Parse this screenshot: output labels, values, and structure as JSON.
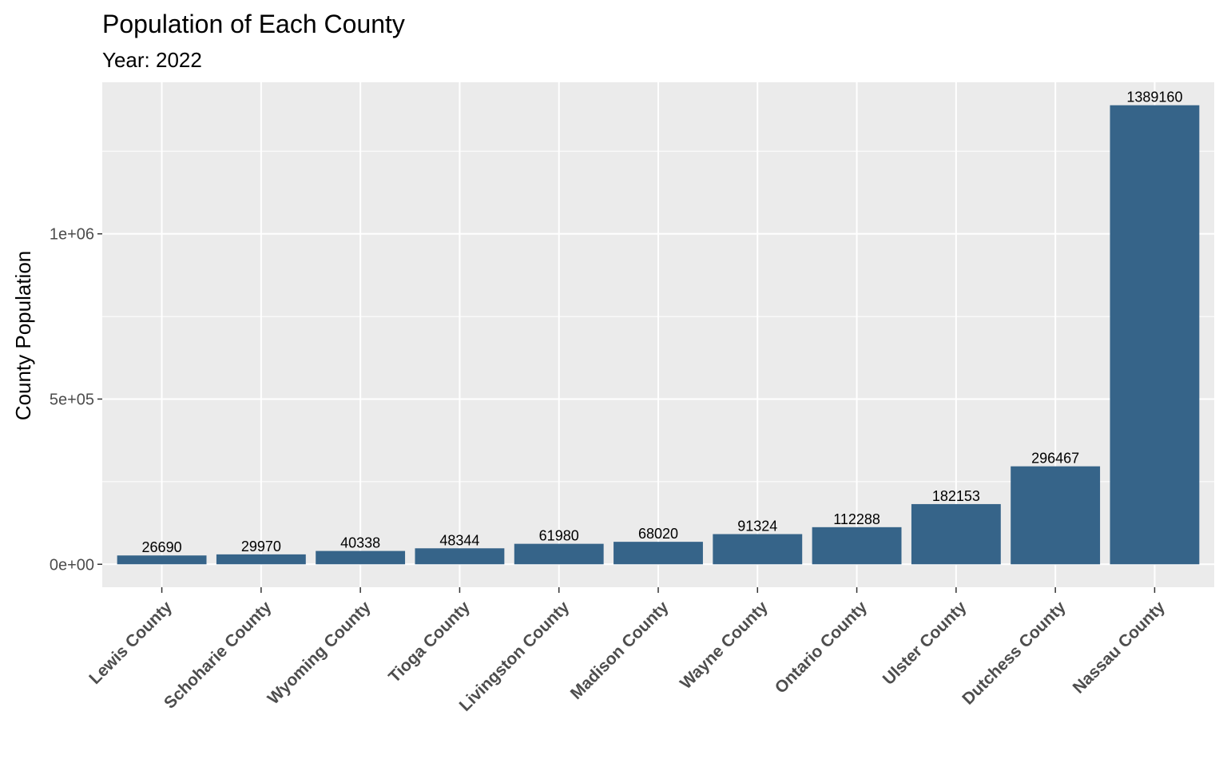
{
  "chart_data": {
    "type": "bar",
    "title": "Population of Each County",
    "subtitle": "Year: 2022",
    "xlabel": "",
    "ylabel": "County Population",
    "categories": [
      "Lewis County",
      "Schoharie County",
      "Wyoming County",
      "Tioga County",
      "Livingston County",
      "Madison County",
      "Wayne County",
      "Ontario County",
      "Ulster County",
      "Dutchess County",
      "Nassau County"
    ],
    "values": [
      26690,
      29970,
      40338,
      48344,
      61980,
      68020,
      91324,
      112288,
      182153,
      296467,
      1389160
    ],
    "data_labels": [
      "26690",
      "29970",
      "40338",
      "48344",
      "61980",
      "68020",
      "91324",
      "112288",
      "182153",
      "296467",
      "1389160"
    ],
    "yticks": [
      0,
      500000,
      1000000
    ],
    "ytick_labels": [
      "0e+00",
      "5e+05",
      "1e+06"
    ],
    "ylim": [
      -69458,
      1458618
    ],
    "grid": true,
    "legend": "none",
    "colors": {
      "bar": "#366489",
      "panel": "#ebebeb",
      "grid": "#ffffff"
    }
  }
}
